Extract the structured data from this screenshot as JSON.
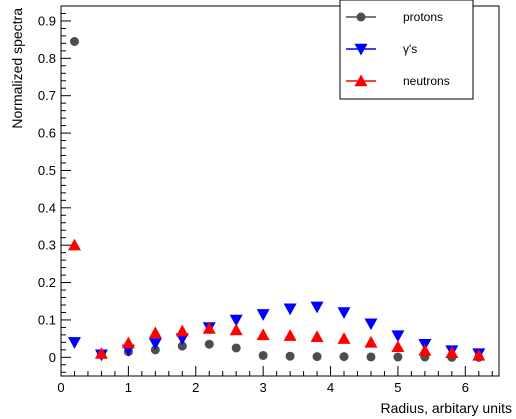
{
  "chart_data": {
    "type": "scatter",
    "xlabel": "Radius, arbitary units",
    "ylabel": "Normalized spectra",
    "xlim": [
      0,
      6.5
    ],
    "ylim": [
      -0.05,
      0.94
    ],
    "xticks": [
      0,
      1,
      2,
      3,
      4,
      5,
      6
    ],
    "yticks": [
      0,
      0.1,
      0.2,
      0.3,
      0.4,
      0.5,
      0.6,
      0.7,
      0.8,
      0.9
    ],
    "grid": false,
    "legend_position": "top-right",
    "series": [
      {
        "name": "protons",
        "marker": "circle",
        "color": "#4d4d4d",
        "x": [
          0.2,
          0.6,
          1.0,
          1.4,
          1.8,
          2.2,
          2.6,
          3.0,
          3.4,
          3.8,
          4.2,
          4.6,
          5.0,
          5.4,
          5.8,
          6.2
        ],
        "y": [
          0.845,
          0.01,
          0.015,
          0.02,
          0.03,
          0.035,
          0.025,
          0.005,
          0.003,
          0.002,
          0.002,
          0.001,
          0.001,
          0.001,
          0.0,
          0.0
        ]
      },
      {
        "name": "γ's",
        "marker": "triangle-down",
        "color": "#0000ff",
        "x": [
          0.2,
          0.6,
          1.0,
          1.4,
          1.8,
          2.2,
          2.6,
          3.0,
          3.4,
          3.8,
          4.2,
          4.6,
          5.0,
          5.4,
          5.8,
          6.2
        ],
        "y": [
          0.04,
          0.007,
          0.02,
          0.037,
          0.05,
          0.08,
          0.1,
          0.115,
          0.13,
          0.135,
          0.12,
          0.09,
          0.058,
          0.035,
          0.018,
          0.01
        ]
      },
      {
        "name": "neutrons",
        "marker": "triangle-up",
        "color": "#ff0000",
        "x": [
          0.2,
          0.6,
          1.0,
          1.4,
          1.8,
          2.2,
          2.6,
          3.0,
          3.4,
          3.8,
          4.2,
          4.6,
          5.0,
          5.4,
          5.8,
          6.2
        ],
        "y": [
          0.3,
          0.01,
          0.038,
          0.065,
          0.07,
          0.077,
          0.073,
          0.06,
          0.058,
          0.055,
          0.05,
          0.04,
          0.028,
          0.018,
          0.012,
          0.005
        ]
      }
    ]
  }
}
